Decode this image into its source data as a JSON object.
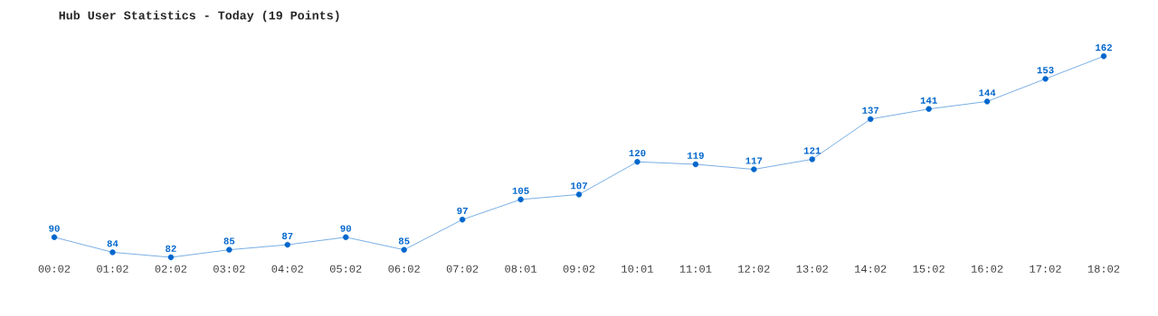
{
  "chart_data": {
    "type": "line",
    "title": "Hub User Statistics - Today (19 Points)",
    "categories": [
      "00:02",
      "01:02",
      "02:02",
      "03:02",
      "04:02",
      "05:02",
      "06:02",
      "07:02",
      "08:01",
      "09:02",
      "10:01",
      "11:01",
      "12:02",
      "13:02",
      "14:02",
      "15:02",
      "16:02",
      "17:02",
      "18:02"
    ],
    "series": [
      {
        "color": "#0066cc",
        "values": [
          90,
          84,
          82,
          85,
          87,
          90,
          85,
          97,
          105,
          107,
          120,
          119,
          117,
          121,
          137,
          141,
          144,
          153,
          162
        ]
      }
    ],
    "data_labels": true,
    "marker": "circle",
    "line_style": "solid",
    "grid": false
  }
}
